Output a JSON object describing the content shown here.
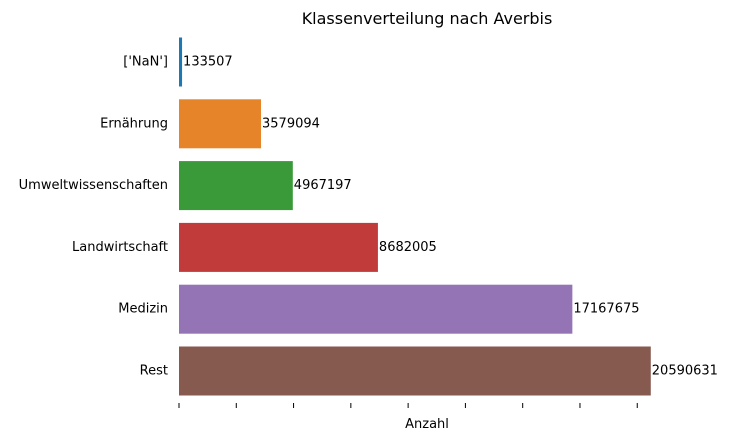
{
  "chart_data": {
    "type": "bar",
    "orientation": "horizontal",
    "title": "Klassenverteilung nach Averbis",
    "xlabel": "Anzahl",
    "ylabel": "",
    "categories": [
      "['NaN']",
      "Ernährung",
      "Umweltwissenschaften",
      "Landwirtschaft",
      "Medizin",
      "Rest"
    ],
    "values": [
      133507,
      3579094,
      4967197,
      8682005,
      17167675,
      20590631
    ],
    "data_labels": [
      "133507",
      "3579094",
      "4967197",
      "8682005",
      "17167675",
      "20590631"
    ],
    "colors": [
      "#1f77b4",
      "#e6842a",
      "#3a9a3a",
      "#c23b3b",
      "#9474b4",
      "#875a50"
    ],
    "xlim": [
      0,
      20600000
    ],
    "x_tick_values": [
      0,
      2500000,
      5000000,
      7500000,
      10000000,
      12500000,
      15000000,
      17500000,
      20000000
    ],
    "x_tick_labels_shown": false,
    "grid": false,
    "legend": "none"
  }
}
